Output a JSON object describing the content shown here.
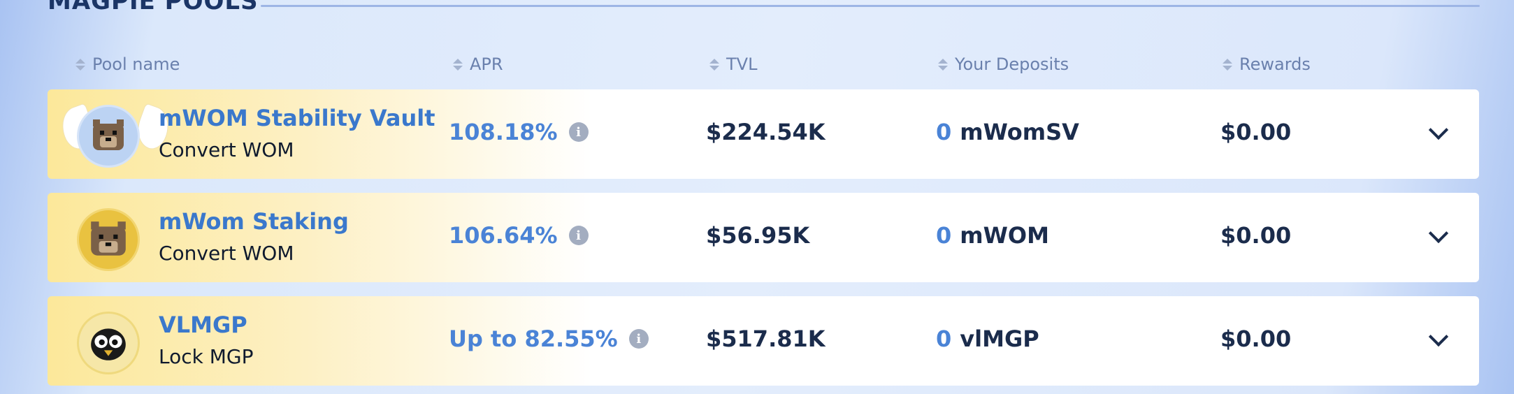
{
  "section": {
    "title": "MAGPIE POOLS"
  },
  "columns": {
    "pool_name": "Pool name",
    "apr": "APR",
    "tvl": "TVL",
    "deposits": "Your Deposits",
    "rewards": "Rewards"
  },
  "pools": [
    {
      "name": "mWOM Stability Vault",
      "subtitle": "Convert WOM",
      "apr": "108.18%",
      "tvl": "$224.54K",
      "deposit_amount": "0",
      "deposit_token": "mWomSV",
      "rewards": "$0.00",
      "icon": "wombat-angel-icon"
    },
    {
      "name": "mWom Staking",
      "subtitle": "Convert WOM",
      "apr": "106.64%",
      "tvl": "$56.95K",
      "deposit_amount": "0",
      "deposit_token": "mWOM",
      "rewards": "$0.00",
      "icon": "wombat-icon"
    },
    {
      "name": "VLMGP",
      "subtitle": "Lock MGP",
      "apr": "Up to 82.55%",
      "tvl": "$517.81K",
      "deposit_amount": "0",
      "deposit_token": "vlMGP",
      "rewards": "$0.00",
      "icon": "magpie-icon"
    }
  ],
  "colors": {
    "accent": "#4a83d6",
    "title": "#1b3566",
    "row_highlight": "#fce89a"
  }
}
